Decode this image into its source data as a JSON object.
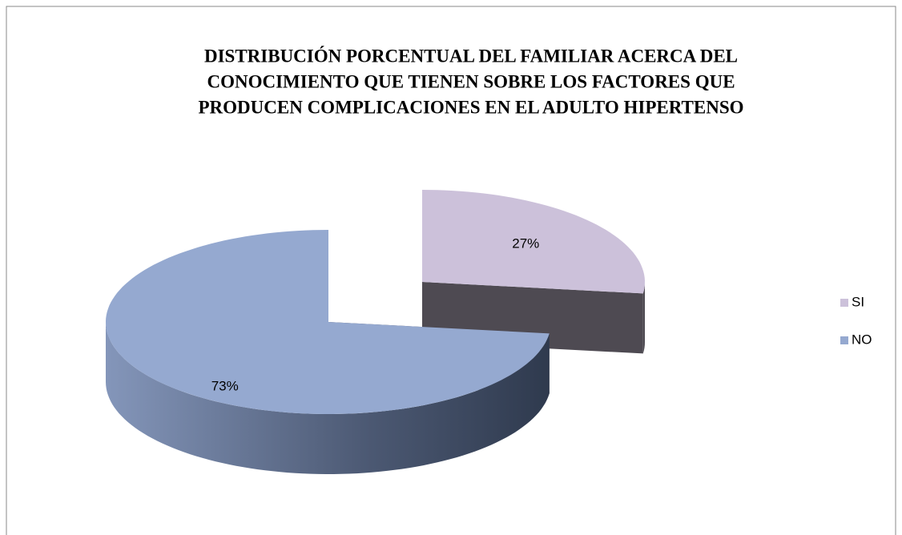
{
  "chart_data": {
    "type": "pie",
    "title": [
      "DISTRIBUCIÓN PORCENTUAL DEL FAMILIAR  ACERCA  DEL",
      "CONOCIMIENTO QUE TIENEN   SOBRE  LOS  FACTORES  QUE",
      "PRODUCEN COMPLICACIONES EN EL ADULTO HIPERTENSO"
    ],
    "categories": [
      "SI",
      "NO"
    ],
    "values": [
      27,
      73
    ],
    "value_labels": [
      "27%",
      "73%"
    ],
    "colors": [
      "#ccc1da",
      "#95a9d0"
    ],
    "exploded": [
      true,
      false
    ],
    "legend": "right"
  }
}
